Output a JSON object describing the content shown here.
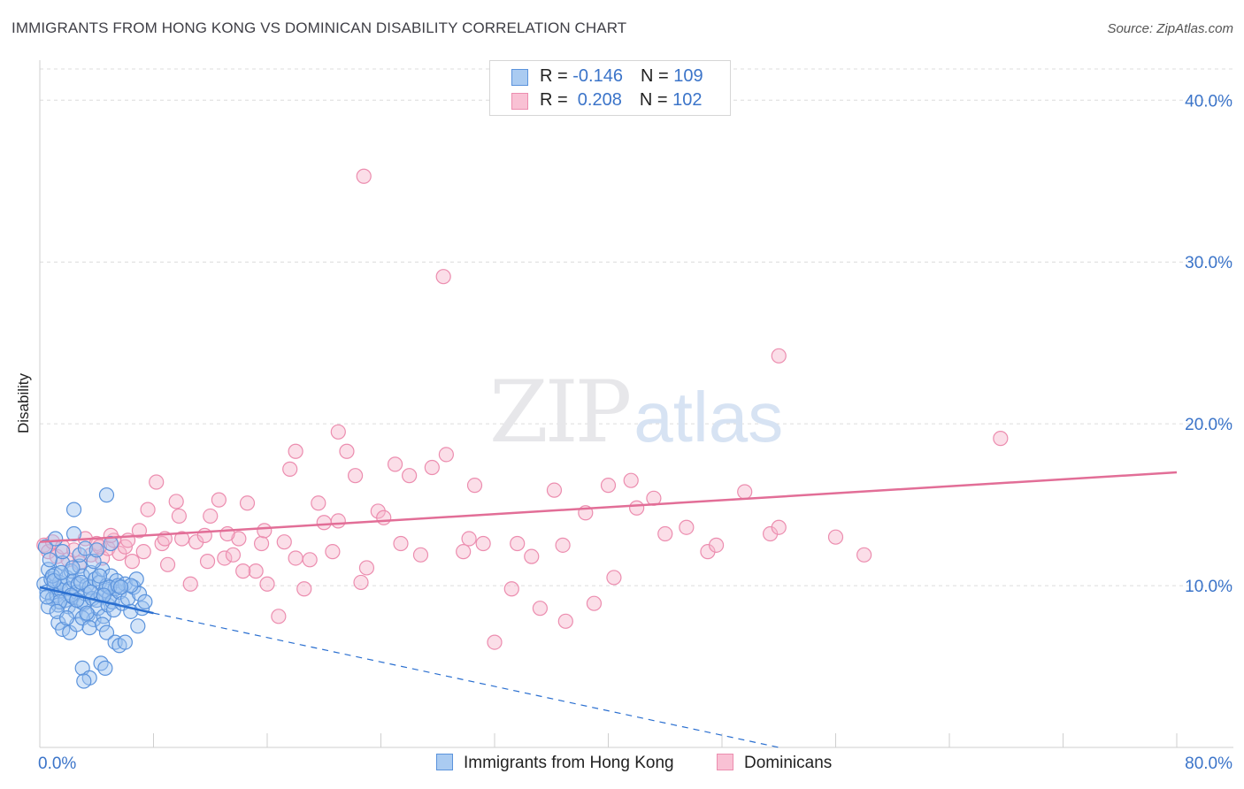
{
  "header": {
    "title": "IMMIGRANTS FROM HONG KONG VS DOMINICAN DISABILITY CORRELATION CHART",
    "source": "Source: ZipAtlas.com"
  },
  "watermark": {
    "part1": "ZIP",
    "part2": "atlas"
  },
  "legend": {
    "rows": [
      {
        "r_label": "R = ",
        "r_value": "-0.146",
        "n_label": "N = ",
        "n_value": "109",
        "color": "#6fa3e4"
      },
      {
        "r_label": "R = ",
        "r_value": " 0.208",
        "n_label": "N = ",
        "n_value": "102",
        "color": "#f08fb0"
      }
    ]
  },
  "bottom_legend": {
    "series1": "Immigrants from Hong Kong",
    "series2": "Dominicans"
  },
  "axis": {
    "ylabel": "Disability",
    "x_min_label": "0.0%",
    "x_max_label": "80.0%",
    "y_ticks": [
      "10.0%",
      "20.0%",
      "30.0%",
      "40.0%"
    ]
  },
  "colors": {
    "blue_fill": "#9ec3ef",
    "blue_stroke": "#5b93dc",
    "blue_line": "#2a6fd0",
    "pink_fill": "#f7b6cb",
    "pink_stroke": "#ec8daf",
    "pink_line": "#e26e97",
    "tick_text": "#3b74c9"
  },
  "chart_data": {
    "type": "scatter",
    "title": "IMMIGRANTS FROM HONG KONG VS DOMINICAN DISABILITY CORRELATION CHART",
    "xlabel": "",
    "ylabel": "Disability",
    "xlim": [
      0,
      80
    ],
    "ylim": [
      0,
      41
    ],
    "y_gridlines": [
      10,
      20,
      30,
      40
    ],
    "series": [
      {
        "name": "Immigrants from Hong Kong",
        "r": -0.146,
        "n": 109,
        "trend": {
          "x": [
            0,
            8
          ],
          "y": [
            9.9,
            8.3
          ],
          "dashed_to": [
            52,
            0
          ]
        },
        "points": [
          [
            0.3,
            10.1
          ],
          [
            0.5,
            9.6
          ],
          [
            0.6,
            11.0
          ],
          [
            0.8,
            10.4
          ],
          [
            0.9,
            9.2
          ],
          [
            1.0,
            9.9
          ],
          [
            1.1,
            10.7
          ],
          [
            1.2,
            9.4
          ],
          [
            1.3,
            8.8
          ],
          [
            1.4,
            10.2
          ],
          [
            1.5,
            9.7
          ],
          [
            1.6,
            11.4
          ],
          [
            1.7,
            10.0
          ],
          [
            1.8,
            9.1
          ],
          [
            1.9,
            10.5
          ],
          [
            2.0,
            8.7
          ],
          [
            2.1,
            9.8
          ],
          [
            2.2,
            10.9
          ],
          [
            2.3,
            9.3
          ],
          [
            2.4,
            10.3
          ],
          [
            2.5,
            8.4
          ],
          [
            2.6,
            9.6
          ],
          [
            2.7,
            10.1
          ],
          [
            2.8,
            11.2
          ],
          [
            2.9,
            9.0
          ],
          [
            3.0,
            10.6
          ],
          [
            3.1,
            8.9
          ],
          [
            3.2,
            9.5
          ],
          [
            3.3,
            10.0
          ],
          [
            3.4,
            8.2
          ],
          [
            3.5,
            9.9
          ],
          [
            3.6,
            10.8
          ],
          [
            3.7,
            9.2
          ],
          [
            3.8,
            7.9
          ],
          [
            3.9,
            10.4
          ],
          [
            4.0,
            9.1
          ],
          [
            4.1,
            8.6
          ],
          [
            4.2,
            10.2
          ],
          [
            4.3,
            9.4
          ],
          [
            4.4,
            11.0
          ],
          [
            4.5,
            8.1
          ],
          [
            4.6,
            9.7
          ],
          [
            4.7,
            10.0
          ],
          [
            4.8,
            8.8
          ],
          [
            4.9,
            9.3
          ],
          [
            5.0,
            10.6
          ],
          [
            5.1,
            9.0
          ],
          [
            5.2,
            8.5
          ],
          [
            5.3,
            9.8
          ],
          [
            5.4,
            10.3
          ],
          [
            5.6,
            9.6
          ],
          [
            5.8,
            8.9
          ],
          [
            6.0,
            10.1
          ],
          [
            6.2,
            9.2
          ],
          [
            6.4,
            8.4
          ],
          [
            6.6,
            9.9
          ],
          [
            6.8,
            10.4
          ],
          [
            7.0,
            9.5
          ],
          [
            7.2,
            8.6
          ],
          [
            7.4,
            9.0
          ],
          [
            0.4,
            12.4
          ],
          [
            0.7,
            11.6
          ],
          [
            1.1,
            12.9
          ],
          [
            1.6,
            12.1
          ],
          [
            2.4,
            13.2
          ],
          [
            2.8,
            11.9
          ],
          [
            3.2,
            12.3
          ],
          [
            1.3,
            7.7
          ],
          [
            1.6,
            7.3
          ],
          [
            2.1,
            7.1
          ],
          [
            2.6,
            7.6
          ],
          [
            3.0,
            8.0
          ],
          [
            3.5,
            7.4
          ],
          [
            4.4,
            7.6
          ],
          [
            4.7,
            7.1
          ],
          [
            5.3,
            6.5
          ],
          [
            5.6,
            6.3
          ],
          [
            6.0,
            6.5
          ],
          [
            4.3,
            5.2
          ],
          [
            4.6,
            4.9
          ],
          [
            3.0,
            4.9
          ],
          [
            3.5,
            4.3
          ],
          [
            3.1,
            4.1
          ],
          [
            2.4,
            14.7
          ],
          [
            4.7,
            15.6
          ],
          [
            6.4,
            10.0
          ],
          [
            0.9,
            10.6
          ],
          [
            1.4,
            9.0
          ],
          [
            2.2,
            9.4
          ],
          [
            2.9,
            10.2
          ],
          [
            3.6,
            9.6
          ],
          [
            4.2,
            10.6
          ],
          [
            4.9,
            9.9
          ],
          [
            5.5,
            10.0
          ],
          [
            6.9,
            7.5
          ],
          [
            0.6,
            8.7
          ],
          [
            1.2,
            8.4
          ],
          [
            1.9,
            8.0
          ],
          [
            2.3,
            11.1
          ],
          [
            3.8,
            11.5
          ],
          [
            4.0,
            12.2
          ],
          [
            5.0,
            12.6
          ],
          [
            0.5,
            9.3
          ],
          [
            1.0,
            10.3
          ],
          [
            1.5,
            10.8
          ],
          [
            2.6,
            9.1
          ],
          [
            3.3,
            8.3
          ],
          [
            4.5,
            9.4
          ],
          [
            5.7,
            9.9
          ]
        ]
      },
      {
        "name": "Dominicans",
        "r": 0.208,
        "n": 102,
        "trend": {
          "x": [
            0,
            80
          ],
          "y": [
            12.7,
            17.0
          ]
        },
        "points": [
          [
            0.3,
            12.5
          ],
          [
            0.6,
            12.1
          ],
          [
            0.9,
            12.7
          ],
          [
            1.2,
            11.8
          ],
          [
            1.6,
            12.4
          ],
          [
            2.0,
            11.6
          ],
          [
            2.4,
            12.2
          ],
          [
            2.8,
            11.4
          ],
          [
            3.2,
            12.9
          ],
          [
            3.6,
            11.9
          ],
          [
            4.0,
            12.6
          ],
          [
            4.4,
            11.7
          ],
          [
            4.8,
            12.3
          ],
          [
            5.2,
            12.8
          ],
          [
            5.6,
            12.0
          ],
          [
            6.0,
            12.4
          ],
          [
            6.5,
            11.5
          ],
          [
            7.0,
            13.4
          ],
          [
            7.6,
            14.7
          ],
          [
            8.2,
            16.4
          ],
          [
            8.6,
            12.6
          ],
          [
            9.0,
            11.3
          ],
          [
            9.6,
            15.2
          ],
          [
            10.0,
            12.9
          ],
          [
            10.6,
            10.1
          ],
          [
            11.0,
            12.7
          ],
          [
            11.6,
            13.1
          ],
          [
            12.0,
            14.3
          ],
          [
            12.6,
            15.3
          ],
          [
            13.0,
            11.7
          ],
          [
            13.6,
            11.9
          ],
          [
            14.0,
            12.9
          ],
          [
            14.6,
            15.1
          ],
          [
            15.2,
            10.9
          ],
          [
            15.6,
            12.6
          ],
          [
            16.0,
            10.1
          ],
          [
            16.8,
            8.1
          ],
          [
            17.2,
            12.7
          ],
          [
            17.6,
            17.2
          ],
          [
            18.0,
            11.7
          ],
          [
            18.6,
            9.8
          ],
          [
            19.0,
            11.6
          ],
          [
            19.6,
            15.1
          ],
          [
            20.0,
            13.9
          ],
          [
            20.6,
            12.1
          ],
          [
            21.0,
            14.0
          ],
          [
            21.6,
            18.3
          ],
          [
            22.2,
            16.8
          ],
          [
            22.6,
            10.2
          ],
          [
            23.0,
            11.1
          ],
          [
            23.8,
            14.6
          ],
          [
            24.2,
            14.2
          ],
          [
            25.0,
            17.5
          ],
          [
            26.0,
            16.8
          ],
          [
            26.8,
            11.9
          ],
          [
            27.6,
            17.3
          ],
          [
            28.6,
            18.1
          ],
          [
            29.8,
            12.1
          ],
          [
            30.6,
            16.2
          ],
          [
            31.2,
            12.6
          ],
          [
            32.0,
            6.5
          ],
          [
            33.2,
            9.8
          ],
          [
            33.6,
            12.6
          ],
          [
            34.6,
            11.8
          ],
          [
            35.2,
            8.6
          ],
          [
            36.2,
            15.9
          ],
          [
            37.0,
            7.8
          ],
          [
            38.4,
            14.5
          ],
          [
            39.0,
            8.9
          ],
          [
            40.0,
            16.2
          ],
          [
            40.4,
            10.5
          ],
          [
            41.6,
            16.5
          ],
          [
            43.2,
            15.4
          ],
          [
            44.0,
            13.2
          ],
          [
            47.0,
            12.1
          ],
          [
            49.6,
            15.8
          ],
          [
            51.4,
            13.2
          ],
          [
            52.0,
            13.6
          ],
          [
            56.0,
            13.0
          ],
          [
            52.0,
            24.2
          ],
          [
            67.6,
            19.1
          ],
          [
            22.8,
            35.3
          ],
          [
            28.4,
            29.1
          ],
          [
            21.0,
            19.5
          ],
          [
            18.0,
            18.3
          ],
          [
            8.8,
            12.9
          ],
          [
            9.8,
            14.3
          ],
          [
            11.8,
            11.5
          ],
          [
            6.2,
            12.8
          ],
          [
            5.0,
            13.1
          ],
          [
            4.2,
            12.4
          ],
          [
            7.3,
            12.1
          ],
          [
            13.2,
            13.2
          ],
          [
            14.3,
            10.9
          ],
          [
            15.8,
            13.4
          ],
          [
            25.4,
            12.6
          ],
          [
            30.2,
            12.9
          ],
          [
            36.8,
            12.5
          ],
          [
            42.0,
            14.8
          ],
          [
            45.5,
            13.6
          ],
          [
            47.6,
            12.5
          ],
          [
            58.0,
            11.9
          ]
        ]
      }
    ]
  }
}
